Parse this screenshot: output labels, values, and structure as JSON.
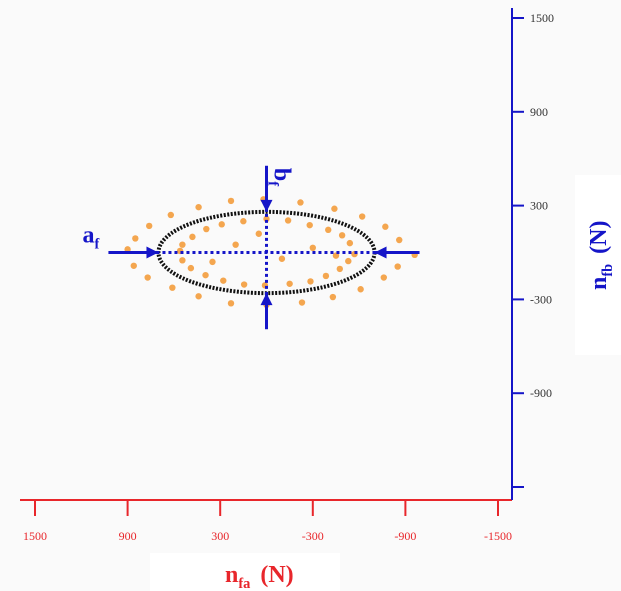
{
  "chart_data": {
    "type": "scatter",
    "x_label": {
      "main": "n",
      "sub": "fa",
      "unit": "(N)"
    },
    "y_label": {
      "main": "n",
      "sub": "fb",
      "unit": "(N)"
    },
    "xlim": [
      1500,
      -1500
    ],
    "xticks": [
      1500,
      900,
      300,
      -300,
      -900,
      -1500
    ],
    "ylim": [
      1500,
      -1500
    ],
    "yticks": [
      1500,
      900,
      300,
      -300,
      -900,
      {
        "value": -1500,
        "label": null
      }
    ],
    "x_axis_color": "#e8262b",
    "y_axis_color": "#1515c8",
    "series": [
      {
        "color": "#f39c3c",
        "x": [
          560,
          545,
          480,
          390,
          290,
          150,
          0,
          -140,
          -280,
          -400,
          -490,
          -540,
          -570,
          -530,
          -475,
          -385,
          -285,
          -150,
          10,
          145,
          280,
          395,
          490,
          545,
          900,
          850,
          760,
          620,
          440,
          230,
          20,
          -220,
          -440,
          -620,
          -770,
          -860,
          -960,
          -850,
          -760,
          -610,
          -430,
          -230,
          0,
          230,
          440,
          610,
          770,
          860,
          200,
          -100,
          -300,
          350,
          50,
          -450
        ],
        "y": [
          10,
          50,
          100,
          150,
          180,
          200,
          215,
          205,
          175,
          145,
          110,
          60,
          -10,
          -55,
          -105,
          -150,
          -185,
          -200,
          -210,
          -205,
          -180,
          -145,
          -100,
          -50,
          20,
          90,
          170,
          240,
          290,
          330,
          340,
          320,
          280,
          230,
          165,
          80,
          -15,
          -90,
          -160,
          -235,
          -285,
          -320,
          -335,
          -325,
          -280,
          -225,
          -160,
          -85,
          50,
          -40,
          30,
          -60,
          120,
          -20
        ]
      }
    ],
    "ellipse": {
      "center": [
        0,
        0
      ],
      "semi_axes": [
        700,
        260
      ],
      "color": "#111111"
    },
    "annotations": {
      "a": {
        "main": "a",
        "sub": "f"
      },
      "b": {
        "main": "b",
        "sub": "f"
      },
      "color": "#1515c8"
    }
  }
}
